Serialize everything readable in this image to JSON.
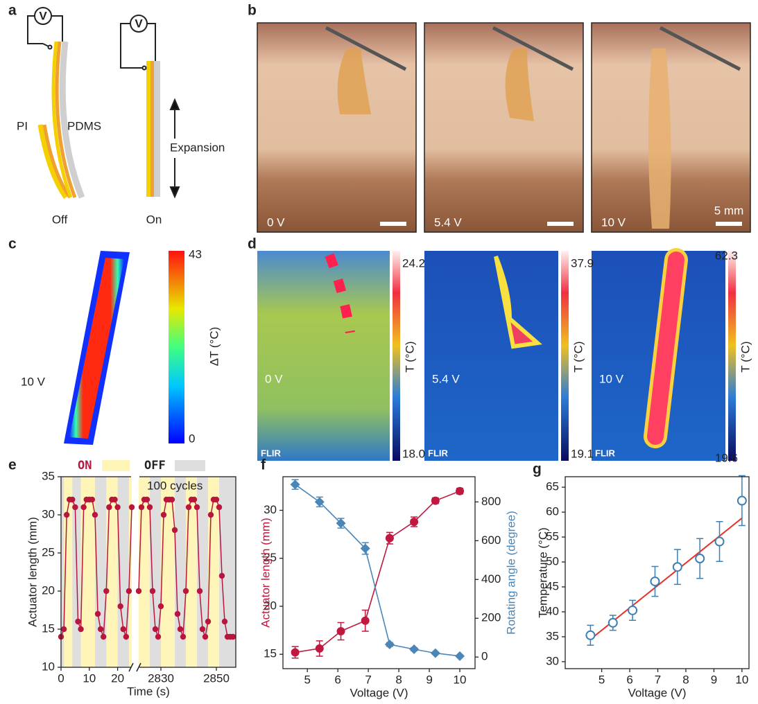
{
  "panel_labels": [
    "a",
    "b",
    "c",
    "d",
    "e",
    "f",
    "g"
  ],
  "panel_a": {
    "meter": "V",
    "pi": "PI",
    "pdms": "PDMS",
    "expansion": "Expansion",
    "off_state": "Off",
    "on_state": "On"
  },
  "panel_b": {
    "photos": [
      {
        "label": "0 V"
      },
      {
        "label": "5.4 V"
      },
      {
        "label": "10 V",
        "scale": "5 mm"
      }
    ]
  },
  "panel_c": {
    "voltage": "10 V",
    "colorbar": {
      "label": "ΔT (°C)",
      "max": 43,
      "min": 0
    }
  },
  "panel_d": {
    "colorbar_label": "T (°C)",
    "logo": "FLIR",
    "images": [
      {
        "voltage": "0 V",
        "max": 24.2,
        "min": {
          "value": 18,
          "label": "18.0"
        }
      },
      {
        "voltage": "5.4 V",
        "max": 37.9,
        "min": 19.1
      },
      {
        "voltage": "10 V",
        "max": 62.3,
        "min": 19.6
      }
    ]
  },
  "chart_data": [
    {
      "type": "line",
      "ylabel": "Actuator length (mm)",
      "xlabel": "Time (s)",
      "annotation": "100 cycles",
      "legend": [
        {
          "name": "ON",
          "color": "#fff5b8"
        },
        {
          "name": "OFF",
          "color": "#dedede"
        }
      ],
      "color": "#b8163c",
      "ylim": [
        10,
        35
      ],
      "yticks": [
        10,
        15,
        20,
        25,
        30,
        35
      ],
      "segments": [
        {
          "xlim": [
            0,
            25
          ],
          "xticks": [
            0,
            10,
            20
          ],
          "on_bands": [
            [
              1,
              4
            ],
            [
              7,
              12
            ],
            [
              16,
              20
            ],
            [
              24,
              25
            ]
          ],
          "x": [
            0,
            1,
            2,
            3,
            4,
            5,
            6,
            7,
            8,
            9,
            10,
            11,
            12,
            13,
            14,
            15,
            16,
            17,
            18,
            19,
            20,
            21,
            22,
            23,
            24,
            25
          ],
          "values": [
            14,
            15,
            30,
            32,
            32,
            31,
            16,
            15,
            31,
            32,
            32,
            32,
            30,
            17,
            15,
            14,
            20,
            31,
            32,
            32,
            31,
            18,
            15,
            14,
            20,
            31
          ]
        },
        {
          "xlim": [
            2822,
            2857
          ],
          "xticks": [
            2830,
            2850
          ],
          "on_bands": [
            [
              2822,
              2826
            ],
            [
              2830,
              2835
            ],
            [
              2839,
              2843
            ],
            [
              2847,
              2851
            ]
          ],
          "x": [
            2822,
            2823,
            2824,
            2825,
            2826,
            2827,
            2828,
            2829,
            2830,
            2831,
            2832,
            2833,
            2834,
            2835,
            2836,
            2837,
            2838,
            2839,
            2840,
            2841,
            2842,
            2843,
            2844,
            2845,
            2846,
            2847,
            2848,
            2849,
            2850,
            2851,
            2852,
            2853,
            2854,
            2855,
            2856
          ],
          "values": [
            20,
            31,
            32,
            32,
            31,
            20,
            15,
            14,
            18,
            30,
            32,
            32,
            32,
            28,
            17,
            15,
            14,
            20,
            31,
            32,
            32,
            31,
            20,
            15,
            14,
            16,
            30,
            32,
            32,
            31,
            22,
            16,
            14,
            14,
            14
          ]
        }
      ]
    },
    {
      "type": "dual_line",
      "xlabel": "Voltage (V)",
      "ylabel": "Actuator length (mm)",
      "y2label": "Rotating angle (degree)",
      "x": [
        4.6,
        5.4,
        6.1,
        6.9,
        7.7,
        8.5,
        9.2,
        10
      ],
      "xlim": [
        4.2,
        10.5
      ],
      "xticks": [
        5,
        6,
        7,
        8,
        9,
        10
      ],
      "ylim": [
        13.5,
        33.5
      ],
      "yticks": [
        15,
        20,
        25,
        30
      ],
      "y2lim": [
        -60,
        930
      ],
      "y2ticks": [
        0,
        200,
        400,
        600,
        800
      ],
      "series": [
        {
          "color": "#c0183f",
          "values": [
            15.2,
            15.6,
            17.4,
            18.5,
            27.1,
            28.8,
            31.0,
            32.0
          ],
          "errors": [
            0.6,
            0.8,
            0.9,
            1.1,
            0.6,
            0.5,
            0.3,
            0.3
          ]
        },
        {
          "color": "#4a86b8",
          "axis": "y2",
          "values": [
            890,
            800,
            690,
            560,
            65,
            40,
            20,
            5
          ],
          "errors": [
            25,
            25,
            25,
            30,
            10,
            8,
            5,
            5
          ]
        }
      ]
    },
    {
      "type": "scatter_fit",
      "xlabel": "Voltage (V)",
      "ylabel": "Temperature (°C)",
      "x": [
        4.6,
        5.4,
        6.1,
        6.9,
        7.7,
        8.5,
        9.2,
        10
      ],
      "xlim": [
        3.7,
        10.25
      ],
      "xticks": [
        5,
        6,
        7,
        8,
        9,
        10
      ],
      "ylim": [
        28.6,
        67.1
      ],
      "yticks": [
        30,
        35,
        40,
        45,
        50,
        55,
        60,
        65
      ],
      "series": [
        {
          "color": "#3b7fb5",
          "values": [
            35.3,
            37.8,
            40.3,
            46.1,
            49.0,
            50.7,
            54.1,
            62.3
          ],
          "errors": [
            2,
            1.5,
            2,
            3,
            3.5,
            4,
            4,
            5
          ]
        }
      ],
      "fit": {
        "color": "#e8312a",
        "x": [
          4.6,
          10
        ],
        "values": [
          34.5,
          58.8
        ]
      }
    }
  ]
}
